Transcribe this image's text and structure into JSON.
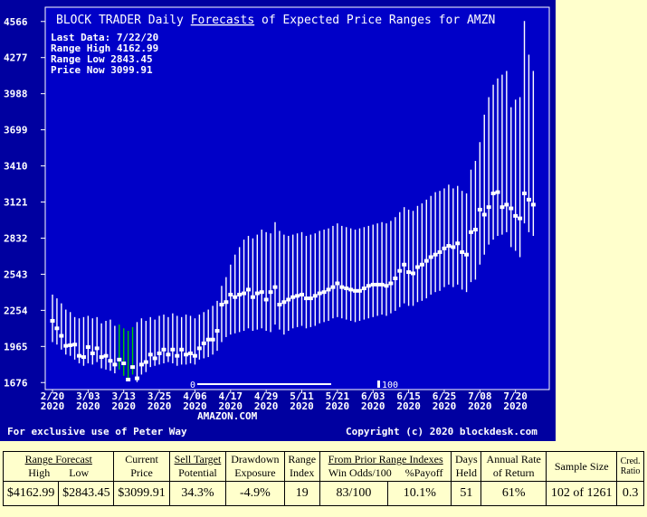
{
  "chart_data": {
    "type": "range-candles",
    "title_prefix": "BLOCK TRADER Daily ",
    "title_link": "Forecasts",
    "title_suffix": " of Expected Price Ranges for  AMZN",
    "info": {
      "last_data": "Last Data: 7/22/20",
      "range_high": "Range High 4162.99",
      "range_low": "Range Low  2843.45",
      "price_now": "Price Now  3099.91"
    },
    "ylim": [
      1620,
      4680
    ],
    "y_ticks": [
      "1676",
      "1965",
      "2254",
      "2543",
      "2832",
      "3121",
      "3410",
      "3699",
      "3988",
      "4277",
      "4566"
    ],
    "x_ticks": [
      {
        "index": 0,
        "month": "2/20",
        "year": "2020"
      },
      {
        "index": 8,
        "month": "3/03",
        "year": "2020"
      },
      {
        "index": 16,
        "month": "3/13",
        "year": "2020"
      },
      {
        "index": 24,
        "month": "3/25",
        "year": "2020"
      },
      {
        "index": 32,
        "month": "4/06",
        "year": "2020"
      },
      {
        "index": 40,
        "month": "4/17",
        "year": "2020"
      },
      {
        "index": 48,
        "month": "4/29",
        "year": "2020"
      },
      {
        "index": 56,
        "month": "5/11",
        "year": "2020"
      },
      {
        "index": 64,
        "month": "5/21",
        "year": "2020"
      },
      {
        "index": 72,
        "month": "6/03",
        "year": "2020"
      },
      {
        "index": 80,
        "month": "6/15",
        "year": "2020"
      },
      {
        "index": 88,
        "month": "6/25",
        "year": "2020"
      },
      {
        "index": 96,
        "month": "7/08",
        "year": "2020"
      },
      {
        "index": 104,
        "month": "7/20",
        "year": "2020"
      }
    ],
    "scale_marker": {
      "zero": "0",
      "hundred": "100"
    },
    "ticker_name": "AMAZON.COM",
    "footer_left": "For exclusive use of Peter Way",
    "footer_right": "Copyright (c) 2020 blockdesk.com",
    "bars": [
      {
        "high": 2380,
        "low": 2000,
        "price": 2170,
        "color": "#ffffff"
      },
      {
        "high": 2350,
        "low": 1980,
        "price": 2110,
        "color": "#ffffff"
      },
      {
        "high": 2310,
        "low": 1940,
        "price": 2050,
        "color": "#ffffff"
      },
      {
        "high": 2260,
        "low": 1900,
        "price": 1970,
        "color": "#ffffff"
      },
      {
        "high": 2240,
        "low": 1890,
        "price": 1975,
        "color": "#ffffff"
      },
      {
        "high": 2200,
        "low": 1860,
        "price": 1980,
        "color": "#ffffff"
      },
      {
        "high": 2190,
        "low": 1830,
        "price": 1890,
        "color": "#ffffff"
      },
      {
        "high": 2200,
        "low": 1810,
        "price": 1880,
        "color": "#ffffff"
      },
      {
        "high": 2210,
        "low": 1830,
        "price": 1960,
        "color": "#ffffff"
      },
      {
        "high": 2190,
        "low": 1820,
        "price": 1910,
        "color": "#ffffff"
      },
      {
        "high": 2200,
        "low": 1840,
        "price": 1950,
        "color": "#ffffff"
      },
      {
        "high": 2150,
        "low": 1790,
        "price": 1880,
        "color": "#ffffff"
      },
      {
        "high": 2170,
        "low": 1780,
        "price": 1890,
        "color": "#ffffff"
      },
      {
        "high": 2180,
        "low": 1770,
        "price": 1850,
        "color": "#ffffff"
      },
      {
        "high": 2130,
        "low": 1750,
        "price": 1820,
        "color": "#ffffff"
      },
      {
        "high": 2140,
        "low": 1780,
        "price": 1860,
        "color": "#00cc00"
      },
      {
        "high": 2110,
        "low": 1730,
        "price": 1830,
        "color": "#00cc00"
      },
      {
        "high": 2090,
        "low": 1690,
        "price": 1700,
        "color": "#00cc00"
      },
      {
        "high": 2120,
        "low": 1740,
        "price": 1800,
        "color": "#00cc00"
      },
      {
        "high": 2160,
        "low": 1680,
        "price": 1710,
        "color": "#ffffff"
      },
      {
        "high": 2190,
        "low": 1740,
        "price": 1820,
        "color": "#ffffff"
      },
      {
        "high": 2170,
        "low": 1760,
        "price": 1840,
        "color": "#ffffff"
      },
      {
        "high": 2200,
        "low": 1800,
        "price": 1900,
        "color": "#ffffff"
      },
      {
        "high": 2180,
        "low": 1810,
        "price": 1870,
        "color": "#ffffff"
      },
      {
        "high": 2210,
        "low": 1820,
        "price": 1910,
        "color": "#ffffff"
      },
      {
        "high": 2220,
        "low": 1830,
        "price": 1940,
        "color": "#ffffff"
      },
      {
        "high": 2200,
        "low": 1840,
        "price": 1900,
        "color": "#ffffff"
      },
      {
        "high": 2230,
        "low": 1830,
        "price": 1940,
        "color": "#ffffff"
      },
      {
        "high": 2210,
        "low": 1810,
        "price": 1890,
        "color": "#ffffff"
      },
      {
        "high": 2200,
        "low": 1820,
        "price": 1940,
        "color": "#ffffff"
      },
      {
        "high": 2220,
        "low": 1820,
        "price": 1900,
        "color": "#ffffff"
      },
      {
        "high": 2210,
        "low": 1830,
        "price": 1910,
        "color": "#ffffff"
      },
      {
        "high": 2190,
        "low": 1820,
        "price": 1890,
        "color": "#ffffff"
      },
      {
        "high": 2220,
        "low": 1860,
        "price": 1950,
        "color": "#ffffff"
      },
      {
        "high": 2240,
        "low": 1870,
        "price": 1990,
        "color": "#ffffff"
      },
      {
        "high": 2260,
        "low": 1880,
        "price": 2020,
        "color": "#ffffff"
      },
      {
        "high": 2290,
        "low": 1900,
        "price": 2020,
        "color": "#ffffff"
      },
      {
        "high": 2330,
        "low": 1930,
        "price": 2090,
        "color": "#ffffff"
      },
      {
        "high": 2450,
        "low": 2000,
        "price": 2300,
        "color": "#ffffff"
      },
      {
        "high": 2520,
        "low": 2040,
        "price": 2320,
        "color": "#ffffff"
      },
      {
        "high": 2620,
        "low": 2060,
        "price": 2380,
        "color": "#ffffff"
      },
      {
        "high": 2700,
        "low": 2070,
        "price": 2360,
        "color": "#ffffff"
      },
      {
        "high": 2760,
        "low": 2080,
        "price": 2380,
        "color": "#ffffff"
      },
      {
        "high": 2820,
        "low": 2090,
        "price": 2390,
        "color": "#ffffff"
      },
      {
        "high": 2850,
        "low": 2110,
        "price": 2420,
        "color": "#ffffff"
      },
      {
        "high": 2830,
        "low": 2090,
        "price": 2360,
        "color": "#ffffff"
      },
      {
        "high": 2860,
        "low": 2100,
        "price": 2390,
        "color": "#ffffff"
      },
      {
        "high": 2900,
        "low": 2110,
        "price": 2400,
        "color": "#ffffff"
      },
      {
        "high": 2880,
        "low": 2090,
        "price": 2340,
        "color": "#ffffff"
      },
      {
        "high": 2870,
        "low": 2080,
        "price": 2400,
        "color": "#ffffff"
      },
      {
        "high": 2960,
        "low": 2140,
        "price": 2440,
        "color": "#ffffff"
      },
      {
        "high": 2890,
        "low": 2100,
        "price": 2300,
        "color": "#ffffff"
      },
      {
        "high": 2860,
        "low": 2060,
        "price": 2320,
        "color": "#ffffff"
      },
      {
        "high": 2850,
        "low": 2090,
        "price": 2340,
        "color": "#ffffff"
      },
      {
        "high": 2860,
        "low": 2110,
        "price": 2360,
        "color": "#ffffff"
      },
      {
        "high": 2870,
        "low": 2120,
        "price": 2370,
        "color": "#ffffff"
      },
      {
        "high": 2880,
        "low": 2130,
        "price": 2380,
        "color": "#ffffff"
      },
      {
        "high": 2850,
        "low": 2110,
        "price": 2350,
        "color": "#ffffff"
      },
      {
        "high": 2860,
        "low": 2120,
        "price": 2350,
        "color": "#ffffff"
      },
      {
        "high": 2870,
        "low": 2130,
        "price": 2370,
        "color": "#ffffff"
      },
      {
        "high": 2890,
        "low": 2150,
        "price": 2390,
        "color": "#ffffff"
      },
      {
        "high": 2900,
        "low": 2160,
        "price": 2400,
        "color": "#ffffff"
      },
      {
        "high": 2910,
        "low": 2170,
        "price": 2420,
        "color": "#ffffff"
      },
      {
        "high": 2930,
        "low": 2190,
        "price": 2440,
        "color": "#ffffff"
      },
      {
        "high": 2950,
        "low": 2200,
        "price": 2470,
        "color": "#ffffff"
      },
      {
        "high": 2930,
        "low": 2190,
        "price": 2440,
        "color": "#ffffff"
      },
      {
        "high": 2920,
        "low": 2180,
        "price": 2430,
        "color": "#ffffff"
      },
      {
        "high": 2910,
        "low": 2170,
        "price": 2420,
        "color": "#ffffff"
      },
      {
        "high": 2900,
        "low": 2160,
        "price": 2410,
        "color": "#ffffff"
      },
      {
        "high": 2910,
        "low": 2170,
        "price": 2410,
        "color": "#ffffff"
      },
      {
        "high": 2920,
        "low": 2180,
        "price": 2430,
        "color": "#ffffff"
      },
      {
        "high": 2930,
        "low": 2190,
        "price": 2450,
        "color": "#ffffff"
      },
      {
        "high": 2940,
        "low": 2200,
        "price": 2460,
        "color": "#ffffff"
      },
      {
        "high": 2950,
        "low": 2210,
        "price": 2460,
        "color": "#ffffff"
      },
      {
        "high": 2960,
        "low": 2220,
        "price": 2460,
        "color": "#ffffff"
      },
      {
        "high": 2950,
        "low": 2210,
        "price": 2450,
        "color": "#ffffff"
      },
      {
        "high": 2970,
        "low": 2230,
        "price": 2470,
        "color": "#ffffff"
      },
      {
        "high": 3000,
        "low": 2250,
        "price": 2510,
        "color": "#ffffff"
      },
      {
        "high": 3040,
        "low": 2280,
        "price": 2570,
        "color": "#ffffff"
      },
      {
        "high": 3080,
        "low": 2310,
        "price": 2620,
        "color": "#ffffff"
      },
      {
        "high": 3060,
        "low": 2290,
        "price": 2560,
        "color": "#ffffff"
      },
      {
        "high": 3050,
        "low": 2290,
        "price": 2550,
        "color": "#ffffff"
      },
      {
        "high": 3090,
        "low": 2320,
        "price": 2600,
        "color": "#ffffff"
      },
      {
        "high": 3110,
        "low": 2330,
        "price": 2620,
        "color": "#ffffff"
      },
      {
        "high": 3140,
        "low": 2350,
        "price": 2650,
        "color": "#ffffff"
      },
      {
        "high": 3170,
        "low": 2380,
        "price": 2680,
        "color": "#ffffff"
      },
      {
        "high": 3200,
        "low": 2400,
        "price": 2700,
        "color": "#ffffff"
      },
      {
        "high": 3210,
        "low": 2410,
        "price": 2720,
        "color": "#ffffff"
      },
      {
        "high": 3230,
        "low": 2440,
        "price": 2750,
        "color": "#ffffff"
      },
      {
        "high": 3260,
        "low": 2460,
        "price": 2770,
        "color": "#ffffff"
      },
      {
        "high": 3230,
        "low": 2440,
        "price": 2760,
        "color": "#ffffff"
      },
      {
        "high": 3250,
        "low": 2460,
        "price": 2790,
        "color": "#ffffff"
      },
      {
        "high": 3210,
        "low": 2420,
        "price": 2720,
        "color": "#ffffff"
      },
      {
        "high": 3190,
        "low": 2400,
        "price": 2700,
        "color": "#ffffff"
      },
      {
        "high": 3380,
        "low": 2480,
        "price": 2880,
        "color": "#ffffff"
      },
      {
        "high": 3450,
        "low": 2500,
        "price": 2900,
        "color": "#ffffff"
      },
      {
        "high": 3600,
        "low": 2620,
        "price": 3060,
        "color": "#ffffff"
      },
      {
        "high": 3820,
        "low": 2700,
        "price": 3020,
        "color": "#ffffff"
      },
      {
        "high": 3960,
        "low": 2780,
        "price": 3080,
        "color": "#ffffff"
      },
      {
        "high": 4060,
        "low": 2820,
        "price": 3190,
        "color": "#ffffff"
      },
      {
        "high": 4110,
        "low": 2850,
        "price": 3200,
        "color": "#ffffff"
      },
      {
        "high": 4140,
        "low": 2860,
        "price": 3080,
        "color": "#ffffff"
      },
      {
        "high": 4170,
        "low": 2880,
        "price": 3100,
        "color": "#ffffff"
      },
      {
        "high": 3880,
        "low": 2760,
        "price": 3070,
        "color": "#ffffff"
      },
      {
        "high": 3940,
        "low": 2730,
        "price": 3010,
        "color": "#ffffff"
      },
      {
        "high": 3960,
        "low": 2680,
        "price": 2990,
        "color": "#ffffff"
      },
      {
        "high": 4570,
        "low": 2950,
        "price": 3190,
        "color": "#ffffff"
      },
      {
        "high": 4300,
        "low": 2880,
        "price": 3140,
        "color": "#ffffff"
      },
      {
        "high": 4170,
        "low": 2850,
        "price": 3100,
        "color": "#ffffff"
      }
    ]
  },
  "table": {
    "headers": {
      "range_forecast": "Range Forecast",
      "high": "High",
      "low": "Low",
      "current_price_1": "Current",
      "current_price_2": "Price",
      "sell_target_1": "Sell Target",
      "sell_target_2": "Potential",
      "drawdown_1": "Drawdown",
      "drawdown_2": "Exposure",
      "range_index_1": "Range",
      "range_index_2": "Index",
      "prior_range": "From Prior Range Indexes",
      "win_odds": "Win Odds/100",
      "payoff": "%Payoff",
      "days_held_1": "Days",
      "days_held_2": "Held",
      "annual_rate_1": "Annual Rate",
      "annual_rate_2": "of Return",
      "sample_size": "Sample Size",
      "cred_1": "Cred.",
      "cred_2": "Ratio"
    },
    "values": {
      "high": "$4162.99",
      "low": "$2843.45",
      "current_price": "$3099.91",
      "sell_target": "34.3%",
      "drawdown": "-4.9%",
      "range_index": "19",
      "win_odds": "83/100",
      "payoff": "10.1%",
      "days_held": "51",
      "annual_rate": "61%",
      "sample_size": "102 of 1261",
      "cred_ratio": "0.3"
    }
  }
}
